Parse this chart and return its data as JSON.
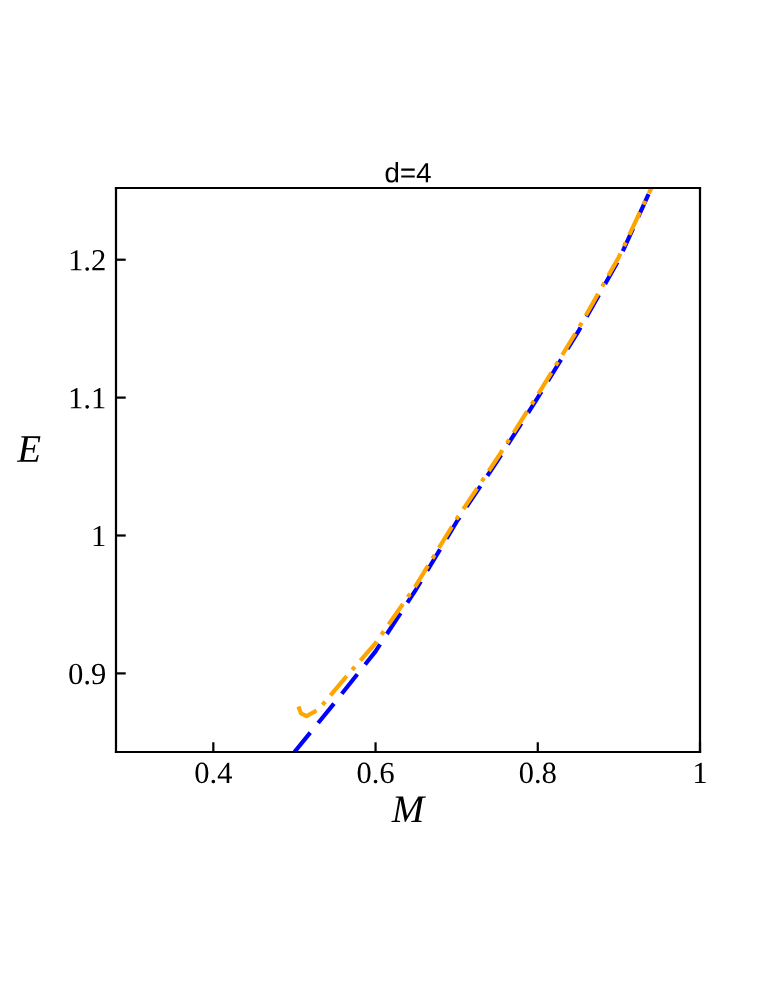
{
  "chart_data": {
    "type": "line",
    "title": "d=4",
    "xlabel": "M",
    "ylabel": "E",
    "xlim": [
      0.28,
      1.0
    ],
    "ylim": [
      0.843,
      1.252
    ],
    "xticks": [
      0.4,
      0.6,
      0.8,
      1
    ],
    "yticks": [
      0.9,
      1,
      1.1,
      1.2
    ],
    "grid": false,
    "legend": false,
    "marker": "none",
    "series": [
      {
        "color": "#0000ff",
        "line_style": "dashed",
        "x": [
          0.5,
          0.55,
          0.6,
          0.65,
          0.7,
          0.75,
          0.8,
          0.85,
          0.9,
          0.94
        ],
        "values": [
          0.843,
          0.879,
          0.916,
          0.961,
          1.01,
          1.054,
          1.1,
          1.148,
          1.2,
          1.252
        ]
      },
      {
        "color": "#ffa500",
        "line_style": "dashdot",
        "x": [
          0.505,
          0.508,
          0.515,
          0.53,
          0.56,
          0.6,
          0.65,
          0.7,
          0.75,
          0.8,
          0.85,
          0.9,
          0.94
        ],
        "values": [
          0.876,
          0.871,
          0.869,
          0.874,
          0.895,
          0.922,
          0.964,
          1.012,
          1.056,
          1.102,
          1.15,
          1.202,
          1.252
        ]
      }
    ]
  }
}
